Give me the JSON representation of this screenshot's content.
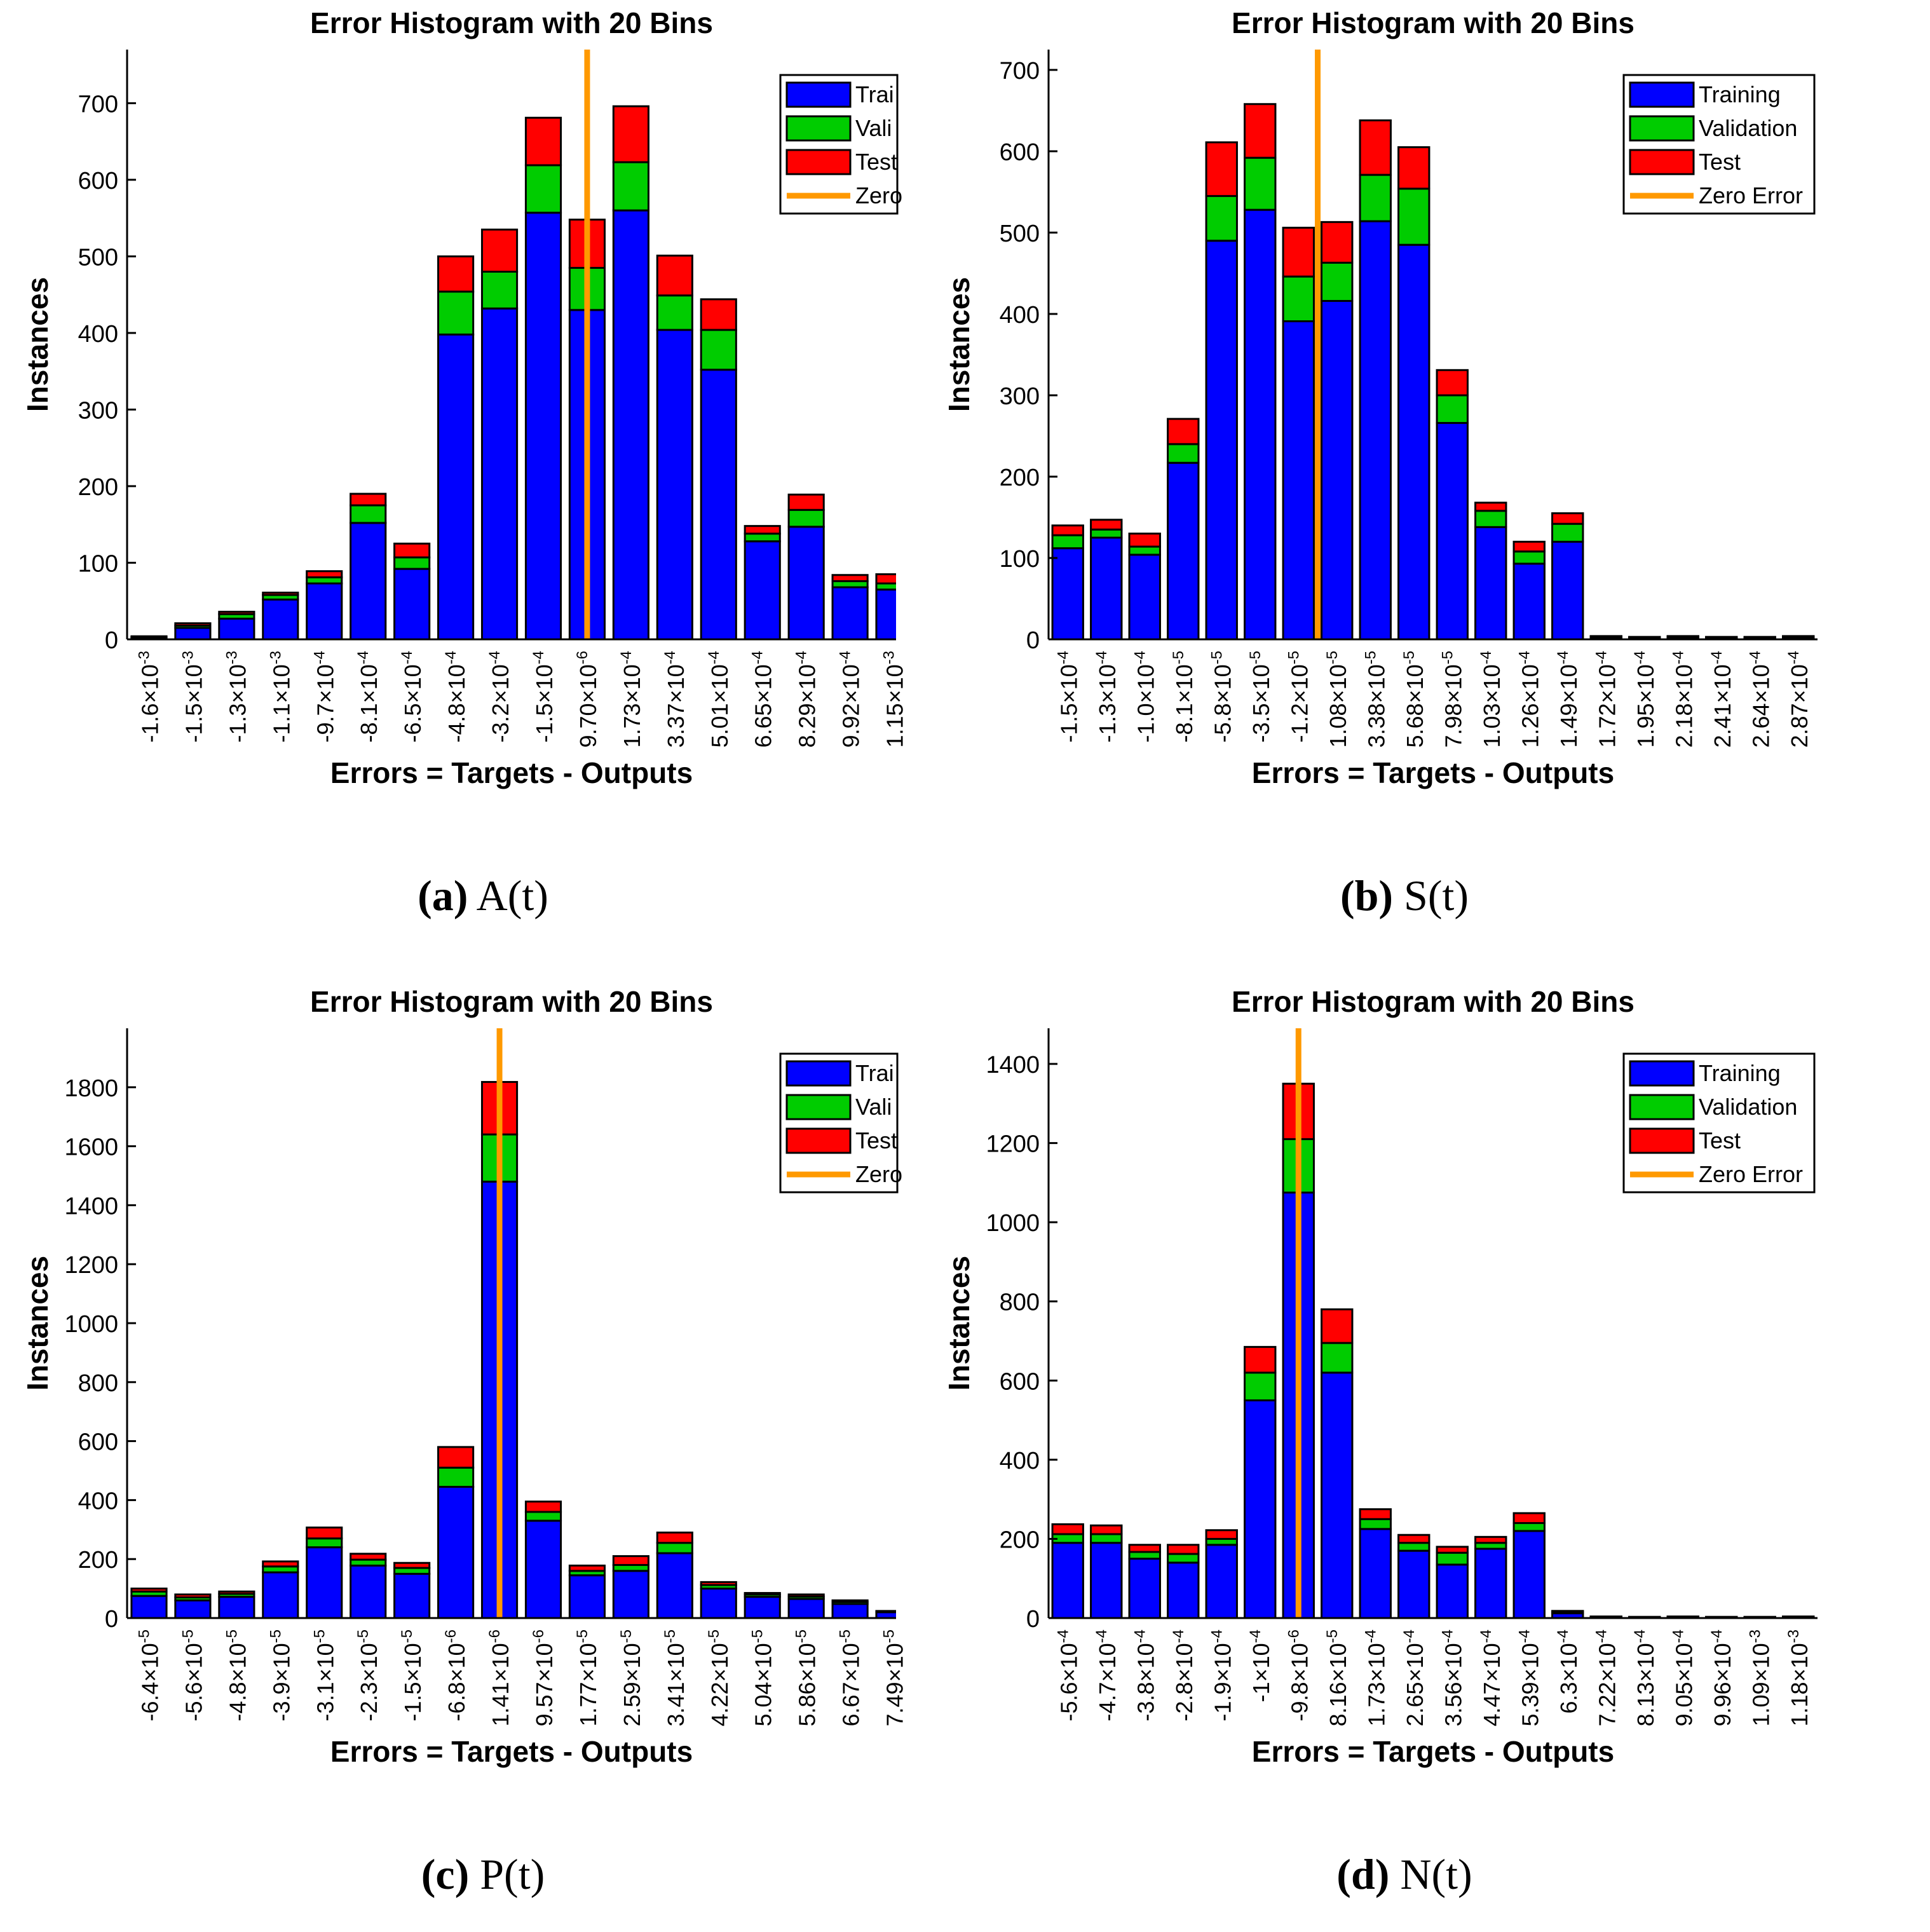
{
  "colors": {
    "training": "#0000ff",
    "validation": "#00cc00",
    "test": "#ff0000",
    "zero": "#ff9900",
    "bar_edge": "#000000"
  },
  "legend_labels": [
    "Training",
    "Validation",
    "Test",
    "Zero Error"
  ],
  "chart_data": [
    {
      "type": "bar",
      "id": "a",
      "title": "Error Histogram with 20 Bins",
      "xlabel": "Errors = Targets - Outputs",
      "ylabel": "Instances",
      "ylim": [
        0,
        770
      ],
      "yticks": [
        0,
        100,
        200,
        300,
        400,
        500,
        600,
        700
      ],
      "legend_entries": [
        "Trai",
        "Vali",
        "Test",
        "Zero"
      ],
      "zero_error_bin": 10.5,
      "visible_bins": 17.55,
      "caption_letter": "(a)",
      "caption_text": " A(t)",
      "categories": [
        "-1.6×10-3",
        "-1.5×10-3",
        "-1.3×10-3",
        "-1.1×10-3",
        "-9.7×10-4",
        "-8.1×10-4",
        "-6.5×10-4",
        "-4.8×10-4",
        "-3.2×10-4",
        "-1.5×10-4",
        "9.70×10-6",
        "1.73×10-4",
        "3.37×10-4",
        "5.01×10-4",
        "6.65×10-4",
        "8.29×10-4",
        "9.92×10-4",
        "1.15×10-3"
      ],
      "series": [
        {
          "name": "Training",
          "values": [
            2,
            15,
            27,
            52,
            73,
            152,
            92,
            398,
            432,
            557,
            430,
            560,
            404,
            352,
            128,
            147,
            68,
            65
          ]
        },
        {
          "name": "Validation",
          "values": [
            1,
            3,
            6,
            6,
            8,
            23,
            15,
            56,
            48,
            62,
            55,
            63,
            45,
            52,
            10,
            22,
            8,
            8
          ]
        },
        {
          "name": "Test",
          "values": [
            1,
            3,
            3,
            3,
            8,
            15,
            18,
            46,
            55,
            62,
            63,
            73,
            52,
            40,
            10,
            20,
            8,
            12
          ]
        }
      ]
    },
    {
      "type": "bar",
      "id": "b",
      "title": "Error Histogram with 20 Bins",
      "xlabel": "Errors = Targets - Outputs",
      "ylabel": "Instances",
      "ylim": [
        0,
        725
      ],
      "yticks": [
        0,
        100,
        200,
        300,
        400,
        500,
        600,
        700
      ],
      "legend_entries": [
        "Training",
        "Validation",
        "Test",
        "Zero Error"
      ],
      "zero_error_bin": 7.0,
      "visible_bins": 20,
      "caption_letter": "(b)",
      "caption_text": " S(t)",
      "categories": [
        "-1.5×10-4",
        "-1.3×10-4",
        "-1.0×10-4",
        "-8.1×10-5",
        "-5.8×10-5",
        "-3.5×10-5",
        "-1.2×10-5",
        "1.08×10-5",
        "3.38×10-5",
        "5.68×10-5",
        "7.98×10-5",
        "1.03×10-4",
        "1.26×10-4",
        "1.49×10-4",
        "1.72×10-4",
        "1.95×10-4",
        "2.18×10-4",
        "2.41×10-4",
        "2.64×10-4",
        "2.87×10-4"
      ],
      "series": [
        {
          "name": "Training",
          "values": [
            112,
            125,
            104,
            217,
            490,
            528,
            391,
            416,
            514,
            485,
            266,
            138,
            93,
            120,
            2,
            2,
            2,
            2,
            2,
            2
          ]
        },
        {
          "name": "Validation",
          "values": [
            16,
            10,
            10,
            23,
            55,
            64,
            55,
            47,
            57,
            69,
            34,
            20,
            15,
            22,
            1,
            1,
            1,
            1,
            1,
            1
          ]
        },
        {
          "name": "Test",
          "values": [
            12,
            12,
            16,
            31,
            66,
            66,
            60,
            50,
            67,
            51,
            31,
            10,
            12,
            13,
            1,
            0,
            1,
            0,
            0,
            1
          ]
        }
      ]
    },
    {
      "type": "bar",
      "id": "c",
      "title": "Error Histogram with 20 Bins",
      "xlabel": "Errors = Targets - Outputs",
      "ylabel": "Instances",
      "ylim": [
        0,
        2000
      ],
      "yticks": [
        0,
        200,
        400,
        600,
        800,
        1000,
        1200,
        1400,
        1600,
        1800
      ],
      "legend_entries": [
        "Trai",
        "Vali",
        "Test",
        "Zero"
      ],
      "zero_error_bin": 8.5,
      "visible_bins": 17.55,
      "caption_letter": "(c)",
      "caption_text": " P(t)",
      "categories": [
        "-6.4×10-5",
        "-5.6×10-5",
        "-4.8×10-5",
        "-3.9×10-5",
        "-3.1×10-5",
        "-2.3×10-5",
        "-1.5×10-5",
        "-6.8×10-6",
        "1.41×10-6",
        "9.57×10-6",
        "1.77×10-5",
        "2.59×10-5",
        "3.41×10-5",
        "4.22×10-5",
        "5.04×10-5",
        "5.86×10-5",
        "6.67×10-5",
        "7.49×10-5"
      ],
      "series": [
        {
          "name": "Training",
          "values": [
            75,
            60,
            72,
            155,
            240,
            178,
            150,
            445,
            1480,
            330,
            145,
            160,
            220,
            100,
            72,
            65,
            48,
            20
          ]
        },
        {
          "name": "Validation",
          "values": [
            15,
            10,
            10,
            20,
            30,
            20,
            20,
            65,
            160,
            30,
            15,
            20,
            35,
            12,
            8,
            8,
            7,
            2
          ]
        },
        {
          "name": "Test",
          "values": [
            10,
            10,
            8,
            17,
            37,
            20,
            17,
            70,
            178,
            35,
            18,
            30,
            35,
            10,
            5,
            7,
            5,
            2
          ]
        }
      ]
    },
    {
      "type": "bar",
      "id": "d",
      "title": "Error Histogram with 20 Bins",
      "xlabel": "Errors = Targets - Outputs",
      "ylabel": "Instances",
      "ylim": [
        0,
        1490
      ],
      "yticks": [
        0,
        200,
        400,
        600,
        800,
        1000,
        1200,
        1400
      ],
      "legend_entries": [
        "Training",
        "Validation",
        "Test",
        "Zero Error"
      ],
      "zero_error_bin": 6.5,
      "visible_bins": 20,
      "caption_letter": "(d)",
      "caption_text": " N(t)",
      "categories": [
        "-5.6×10-4",
        "-4.7×10-4",
        "-3.8×10-4",
        "-2.8×10-4",
        "-1.9×10-4",
        "-1×10-4",
        "-9.8×10-6",
        "8.16×10-5",
        "1.73×10-4",
        "2.65×10-4",
        "3.56×10-4",
        "4.47×10-4",
        "5.39×10-4",
        "6.3×10-4",
        "7.22×10-4",
        "8.13×10-4",
        "9.05×10-4",
        "9.96×10-4",
        "1.09×10-3",
        "1.18×10-3"
      ],
      "series": [
        {
          "name": "Training",
          "values": [
            190,
            190,
            150,
            140,
            185,
            550,
            1075,
            620,
            225,
            170,
            135,
            175,
            220,
            12,
            2,
            2,
            2,
            2,
            2,
            2
          ]
        },
        {
          "name": "Validation",
          "values": [
            22,
            22,
            17,
            22,
            15,
            70,
            135,
            75,
            25,
            20,
            30,
            15,
            20,
            3,
            1,
            1,
            1,
            1,
            1,
            1
          ]
        },
        {
          "name": "Test",
          "values": [
            25,
            22,
            18,
            23,
            22,
            65,
            140,
            85,
            25,
            20,
            15,
            15,
            25,
            3,
            1,
            0,
            1,
            0,
            0,
            1
          ]
        }
      ]
    }
  ]
}
